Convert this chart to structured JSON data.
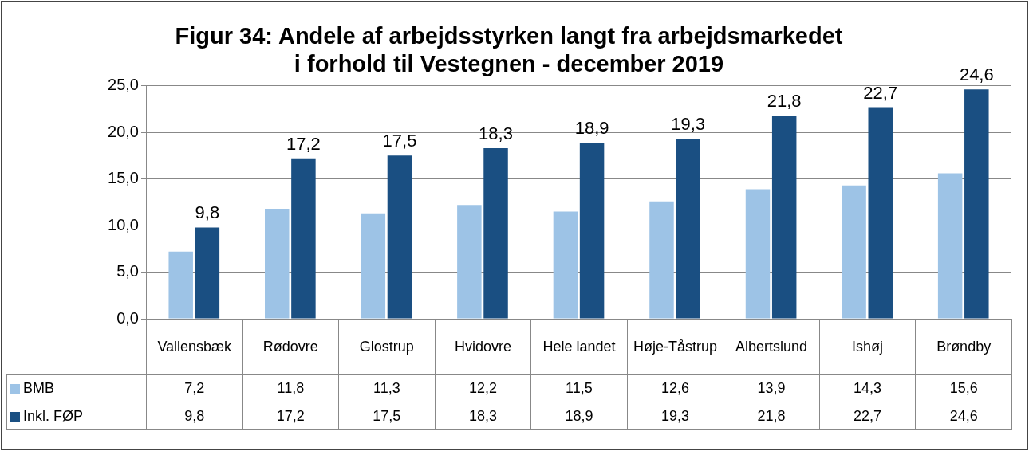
{
  "chart_data": {
    "type": "bar",
    "title": "Figur 34: Andele af arbejdsstyrken langt fra arbejdsmarkedet\ni forhold til Vestegnen - december 2019",
    "categories": [
      "Vallensbæk",
      "Rødovre",
      "Glostrup",
      "Hvidovre",
      "Hele landet",
      "Høje-Tåstrup",
      "Albertslund",
      "Ishøj",
      "Brøndby"
    ],
    "series": [
      {
        "name": "BMB",
        "color": "#9dc3e6",
        "values": [
          7.2,
          11.8,
          11.3,
          12.2,
          11.5,
          12.6,
          13.9,
          14.3,
          15.6
        ],
        "value_labels": [
          "7,2",
          "11,8",
          "11,3",
          "12,2",
          "11,5",
          "12,6",
          "13,9",
          "14,3",
          "15,6"
        ]
      },
      {
        "name": "Inkl. FØP",
        "color": "#1a4f82",
        "values": [
          9.8,
          17.2,
          17.5,
          18.3,
          18.9,
          19.3,
          21.8,
          22.7,
          24.6
        ],
        "value_labels": [
          "9,8",
          "17,2",
          "17,5",
          "18,3",
          "18,9",
          "19,3",
          "21,8",
          "22,7",
          "24,6"
        ]
      }
    ],
    "ylim": [
      0,
      25
    ],
    "yticks": [
      {
        "value": 0,
        "label": "0,0"
      },
      {
        "value": 5,
        "label": "5,0"
      },
      {
        "value": 10,
        "label": "10,0"
      },
      {
        "value": 15,
        "label": "15,0"
      },
      {
        "value": 20,
        "label": "20,0"
      },
      {
        "value": 25,
        "label": "25,0"
      }
    ],
    "grid": "y",
    "legend": "bottom"
  }
}
